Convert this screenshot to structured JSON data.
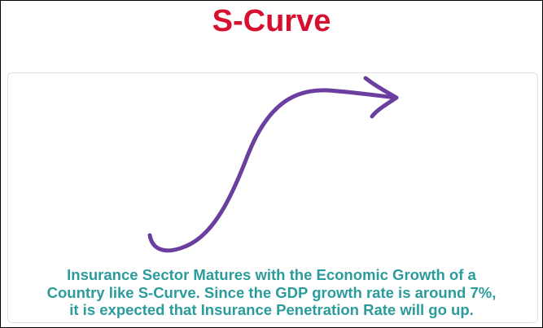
{
  "header": {
    "title": "S-Curve"
  },
  "caption": {
    "lines": [
      "Insurance Sector Matures with the Economic Growth of a",
      "Country like S-Curve. Since the GDP growth rate is around 7%,",
      "it is expected that Insurance Penetration Rate will go up."
    ]
  }
}
